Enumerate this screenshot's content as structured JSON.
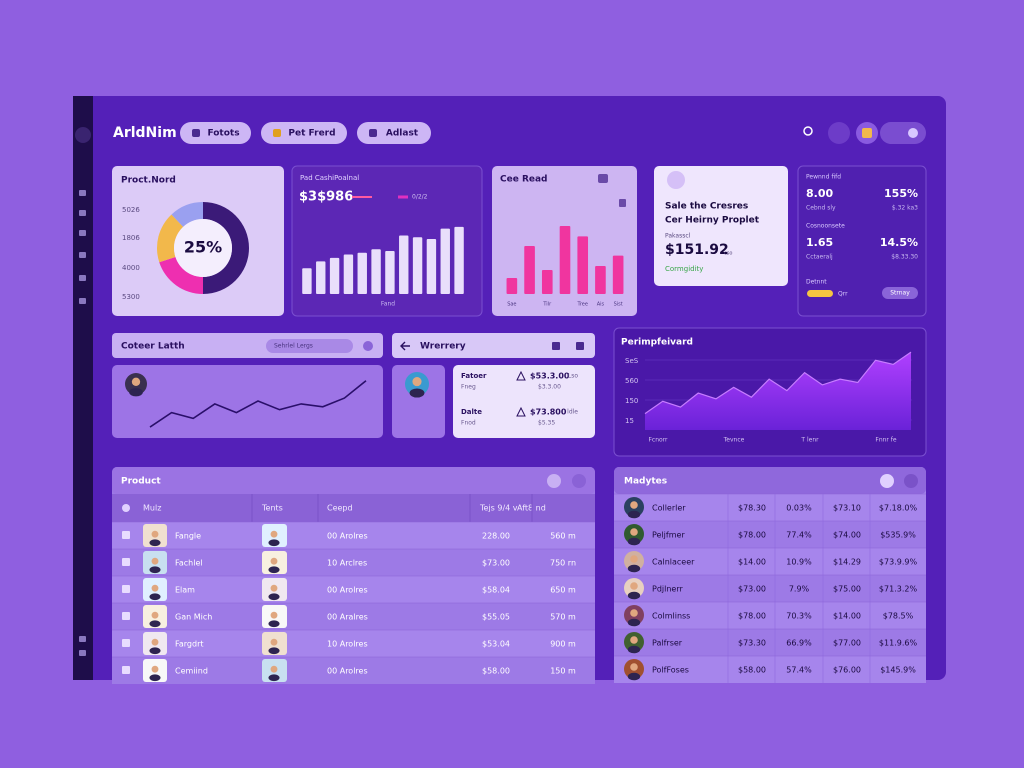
{
  "app": {
    "title": "ArldNim",
    "buttons": [
      "Fotots",
      "Pet Frerd",
      "Adlast"
    ]
  },
  "cards": {
    "proct": {
      "title": "Proct.Nord",
      "labels": [
        "5026",
        "1806",
        "4000",
        "5300"
      ],
      "center": "25%",
      "donut": {
        "values": [
          50,
          20,
          18,
          12
        ],
        "colors": [
          "#3b1a78",
          "#ee2fb0",
          "#f2b84b",
          "#9aa0f0"
        ]
      }
    },
    "cash": {
      "title": "Pad CashiPoalnal",
      "amount": "$3$986",
      "legend": "0/2/2",
      "x_label": "Fand",
      "values": [
        30,
        38,
        42,
        46,
        48,
        52,
        50,
        68,
        66,
        64,
        76,
        78
      ],
      "ylim": [
        0,
        100
      ],
      "color": "#e9defb"
    },
    "read": {
      "title": "Cee Read",
      "categories": [
        "Sae",
        null,
        "Tilr",
        null,
        "Tree",
        "Ais",
        "Sist"
      ],
      "values": [
        20,
        60,
        30,
        85,
        72,
        35,
        48
      ],
      "ylim": [
        0,
        100
      ],
      "color": "#f0359f"
    },
    "sale": {
      "title_lines": [
        "Sale the Cresres",
        "Cer Heirny Proplet"
      ],
      "label": "Pakasscl",
      "amount": "$151.92",
      "suffix": "cso",
      "status": "Cormgidity"
    },
    "stats": {
      "rows": [
        {
          "label": "Pewnnd fifd",
          "value": "8.00",
          "change": "155%",
          "sub": "Cebnd sly",
          "sub2": "$.32 ka3"
        },
        {
          "label": "Cosnoonsete",
          "value": "1.65",
          "change": "14.5%",
          "sub": "Cctaeralj",
          "sub2": "$8.33.30"
        }
      ],
      "footer": {
        "label": "Detnnt",
        "pill": "Qrr",
        "button": "Strnay"
      }
    }
  },
  "trend": {
    "title": "Coteer Latth",
    "search": "Sehrlel Lergs",
    "values": [
      5,
      30,
      20,
      45,
      30,
      50,
      35,
      45,
      40,
      55,
      85
    ],
    "ylim": [
      0,
      100
    ]
  },
  "wallet": {
    "title": "Wrerrery",
    "items": [
      {
        "name": "Fatoer",
        "sub": "Fneg",
        "amount": "$53.3.00",
        "amount_sub": "$3.3.00",
        "tag": "Lso"
      },
      {
        "name": "Dalte",
        "sub": "Fnod",
        "amount": "$73.800",
        "amount_sub": "$5.35",
        "tag": "ldle"
      }
    ]
  },
  "performance": {
    "title": "Perimpfeivard",
    "y_labels": [
      "SeS",
      "560",
      "150",
      "15"
    ],
    "x_labels": [
      "Fcnorr",
      "Tevnce",
      "T lenr",
      "Fnnr fe"
    ],
    "values": [
      20,
      35,
      28,
      45,
      38,
      52,
      40,
      62,
      48,
      70,
      55,
      62,
      58,
      85,
      80,
      95
    ],
    "ylim": [
      0,
      100
    ]
  },
  "product": {
    "title": "Product",
    "columns": [
      "Mulz",
      "Tents",
      "Ceepd",
      "Tejs 9/4 v",
      "Aft8 nd"
    ],
    "rows": [
      [
        "Fangle",
        "00 Arolres",
        "228.00",
        "560 m"
      ],
      [
        "Fachlel",
        "10 Arclres",
        "$73.00",
        "750 rn"
      ],
      [
        "Elam",
        "00 Arolres",
        "$58.04",
        "650 m"
      ],
      [
        "Gan Mich",
        "00 Aralres",
        "$55.05",
        "570 m"
      ],
      [
        "Fargdrt",
        "10 Arolres",
        "$53.04",
        "900 m"
      ],
      [
        "Cemiind",
        "00 Arolres",
        "$58.00",
        "150 m"
      ]
    ]
  },
  "madytes": {
    "title": "Madytes",
    "rows": [
      [
        "Collerler",
        "$78.30",
        "0.03%",
        "$73.10",
        "$7.18.0%"
      ],
      [
        "Peljfmer",
        "$78.00",
        "77.4%",
        "$74.00",
        "$535.9%"
      ],
      [
        "Calnlaceer",
        "$14.00",
        "10.9%",
        "$14.29",
        "$73.9.9%"
      ],
      [
        "Pdjlnerr",
        "$73.00",
        "7.9%",
        "$75.00",
        "$71.3.2%"
      ],
      [
        "Colmlinss",
        "$78.00",
        "70.3%",
        "$14.00",
        "$78.5%"
      ],
      [
        "Palfrser",
        "$73.30",
        "66.9%",
        "$77.00",
        "$11.9.6%"
      ],
      [
        "PolfFoses",
        "$58.00",
        "57.4%",
        "$76.00",
        "$145.9%"
      ]
    ]
  }
}
